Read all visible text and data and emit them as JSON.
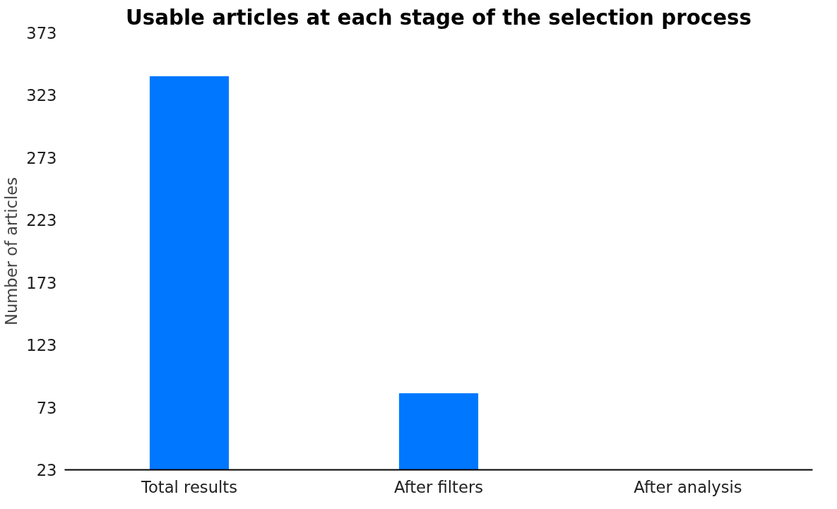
{
  "chart_data": {
    "type": "bar",
    "title": "Usable articles at each stage of the selection process",
    "ylabel": "Number of articles",
    "categories": [
      "Total results",
      "After filters",
      "After analysis"
    ],
    "values": [
      338,
      84,
      null
    ],
    "color": "#0077ff",
    "ylim": [
      23,
      373
    ],
    "yticks": [
      23,
      73,
      123,
      173,
      223,
      273,
      323,
      373
    ],
    "grid": false
  }
}
